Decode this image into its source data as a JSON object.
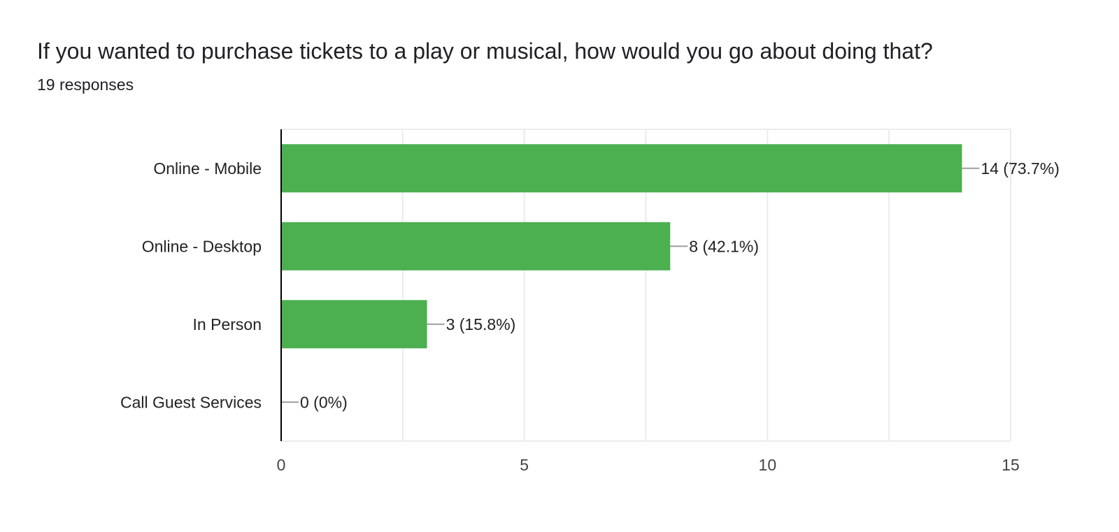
{
  "header": {
    "question": "If you wanted to purchase tickets to a play or musical, how would you go about doing that?",
    "responses": "19 responses"
  },
  "colors": {
    "bar": "#4caf50",
    "grid": "#ebebeb",
    "axis": "#000000",
    "leader": "#9e9e9e"
  },
  "chart_data": {
    "type": "bar",
    "orientation": "horizontal",
    "title": "If you wanted to purchase tickets to a play or musical, how would you go about doing that?",
    "subtitle": "19 responses",
    "categories": [
      "Online - Mobile",
      "Online - Desktop",
      "In Person",
      "Call Guest Services"
    ],
    "values": [
      14,
      8,
      3,
      0
    ],
    "value_labels": [
      "14 (73.7%)",
      "8 (42.1%)",
      "3 (15.8%)",
      "0 (0%)"
    ],
    "xlim": [
      0,
      15
    ],
    "xticks": [
      0,
      5,
      10,
      15
    ],
    "xlabel": "",
    "ylabel": "",
    "grid": true,
    "legend": "none"
  }
}
